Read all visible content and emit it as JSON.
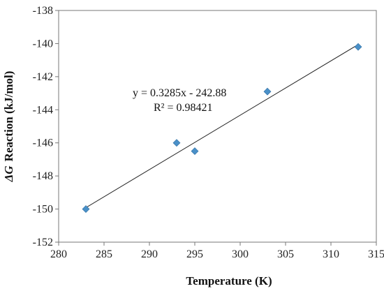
{
  "chart_data": {
    "type": "scatter",
    "xlabel": "Temperature (K)",
    "ylabel_symbol": "ΔG",
    "ylabel_rest": "Reaction (kJ/mol)",
    "xlim": [
      280,
      315
    ],
    "ylim": [
      -152,
      -138
    ],
    "xticks": [
      280,
      285,
      290,
      295,
      300,
      305,
      310,
      315
    ],
    "yticks": [
      -138,
      -140,
      -142,
      -144,
      -146,
      -148,
      -150,
      -152
    ],
    "grid": false,
    "series": [
      {
        "points": [
          {
            "x": 283,
            "y": -150.0
          },
          {
            "x": 293,
            "y": -146.0
          },
          {
            "x": 295,
            "y": -146.5
          },
          {
            "x": 303,
            "y": -142.9
          },
          {
            "x": 313,
            "y": -140.2
          }
        ],
        "marker": "diamond",
        "color": "#4a90c8"
      }
    ],
    "trendline": {
      "slope": 0.3285,
      "intercept": -242.88,
      "x_range": [
        283,
        313
      ],
      "color": "#222222",
      "equation_label": "y = 0.3285x - 242.88",
      "r2_label": "R² = 0.98421"
    }
  }
}
